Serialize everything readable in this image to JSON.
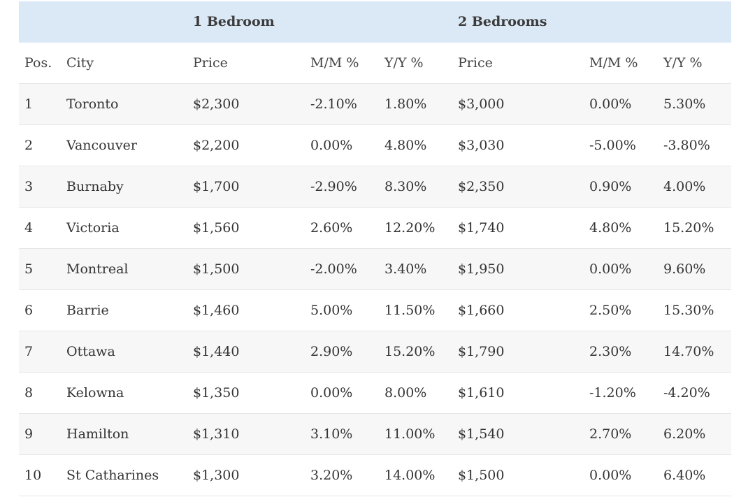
{
  "groups": {
    "one_bedroom": "1 Bedroom",
    "two_bedrooms": "2 Bedrooms"
  },
  "columns": {
    "pos": "Pos.",
    "city": "City",
    "price_1": "Price",
    "mm_1": "M/M %",
    "yy_1": "Y/Y %",
    "price_2": "Price",
    "mm_2": "M/M %",
    "yy_2": "Y/Y %"
  },
  "rows": [
    {
      "pos": "1",
      "city": "Toronto",
      "price_1": "$2,300",
      "mm_1": "-2.10%",
      "yy_1": "1.80%",
      "price_2": "$3,000",
      "mm_2": "0.00%",
      "yy_2": "5.30%"
    },
    {
      "pos": "2",
      "city": "Vancouver",
      "price_1": "$2,200",
      "mm_1": "0.00%",
      "yy_1": "4.80%",
      "price_2": "$3,030",
      "mm_2": "-5.00%",
      "yy_2": "-3.80%"
    },
    {
      "pos": "3",
      "city": "Burnaby",
      "price_1": "$1,700",
      "mm_1": "-2.90%",
      "yy_1": "8.30%",
      "price_2": "$2,350",
      "mm_2": "0.90%",
      "yy_2": "4.00%"
    },
    {
      "pos": "4",
      "city": "Victoria",
      "price_1": "$1,560",
      "mm_1": "2.60%",
      "yy_1": "12.20%",
      "price_2": "$1,740",
      "mm_2": "4.80%",
      "yy_2": "15.20%"
    },
    {
      "pos": "5",
      "city": "Montreal",
      "price_1": "$1,500",
      "mm_1": "-2.00%",
      "yy_1": "3.40%",
      "price_2": "$1,950",
      "mm_2": "0.00%",
      "yy_2": "9.60%"
    },
    {
      "pos": "6",
      "city": "Barrie",
      "price_1": "$1,460",
      "mm_1": "5.00%",
      "yy_1": "11.50%",
      "price_2": "$1,660",
      "mm_2": "2.50%",
      "yy_2": "15.30%"
    },
    {
      "pos": "7",
      "city": "Ottawa",
      "price_1": "$1,440",
      "mm_1": "2.90%",
      "yy_1": "15.20%",
      "price_2": "$1,790",
      "mm_2": "2.30%",
      "yy_2": "14.70%"
    },
    {
      "pos": "8",
      "city": "Kelowna",
      "price_1": "$1,350",
      "mm_1": "0.00%",
      "yy_1": "8.00%",
      "price_2": "$1,610",
      "mm_2": "-1.20%",
      "yy_2": "-4.20%"
    },
    {
      "pos": "9",
      "city": "Hamilton",
      "price_1": "$1,310",
      "mm_1": "3.10%",
      "yy_1": "11.00%",
      "price_2": "$1,540",
      "mm_2": "2.70%",
      "yy_2": "6.20%"
    },
    {
      "pos": "10",
      "city": "St Catharines",
      "price_1": "$1,300",
      "mm_1": "3.20%",
      "yy_1": "14.00%",
      "price_2": "$1,500",
      "mm_2": "0.00%",
      "yy_2": "6.40%"
    }
  ],
  "colors": {
    "group_header_bg": "#dbe9f6",
    "alt_row_bg": "#f7f7f7",
    "text": "#333333"
  }
}
